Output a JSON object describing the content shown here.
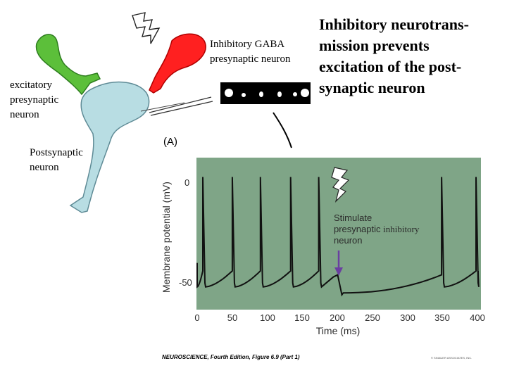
{
  "title": "Inhibitory neurotrans-mission prevents excitation of the post-synaptic neuron",
  "title_lines": [
    "Inhibitory neurotrans-",
    "mission prevents",
    "excitation of the post-",
    "synaptic neuron"
  ],
  "labels": {
    "gaba_neuron": [
      "Inhibitory GABA",
      "presynaptic neuron"
    ],
    "excitatory_neuron": [
      "excitatory",
      "presynaptic",
      "neuron"
    ],
    "postsynaptic_neuron": [
      "Postsynaptic",
      "neuron"
    ]
  },
  "colors": {
    "excitatory": "#5cbf3a",
    "inhibitory": "#ff2020",
    "postsynaptic": "#b8dde3",
    "plot_bg": "#7fa587",
    "trace": "#111111",
    "stim_arrow": "#6a3fa0"
  },
  "figure": {
    "panel_label": "(A)",
    "stim_text_1": "Stimulate",
    "stim_text_2a": "presynaptic",
    "stim_text_2b": "inhibitory",
    "stim_text_3": "neuron",
    "citation": "NEUROSCIENCE, Fourth Edition, Figure 6.9 (Part 1)",
    "copyright": "© SINAUER ASSOCIATES, INC."
  },
  "chart_data": {
    "type": "line",
    "xlabel": "Time (ms)",
    "ylabel": "Membrane potential (mV)",
    "xlim": [
      0,
      400
    ],
    "ylim": [
      -60,
      10
    ],
    "xticks": [
      0,
      50,
      100,
      150,
      200,
      250,
      300,
      350,
      400
    ],
    "yticks": [
      0,
      -50
    ],
    "spike_times": [
      8,
      50,
      90,
      133,
      173,
      348,
      397
    ],
    "stimulus_time": 200,
    "annotation": "Stimulate presynaptic inhibitory neuron",
    "grid": false
  }
}
